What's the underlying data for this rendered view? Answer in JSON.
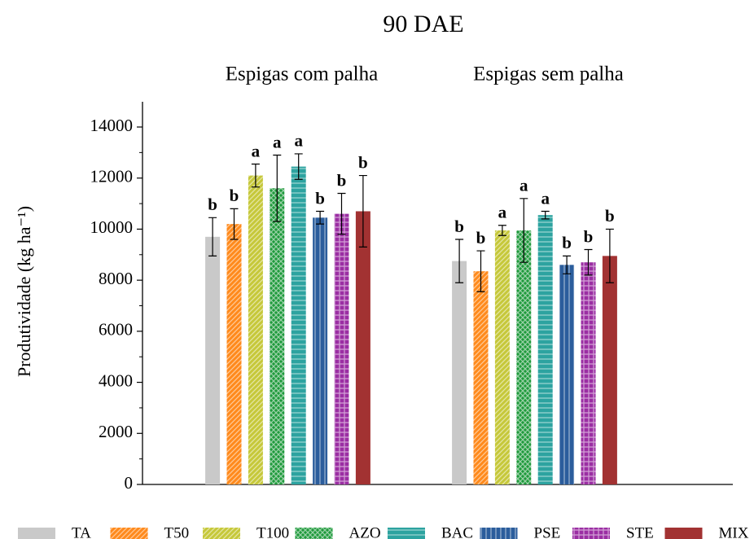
{
  "chart_data": {
    "type": "bar",
    "title": "90 DAE",
    "y_label": "Produtividade (kg ha⁻¹)",
    "categories": [
      "Espigas com palha",
      "Espigas sem palha"
    ],
    "ylim": [
      0,
      14000
    ],
    "yticks": [
      0,
      2000,
      4000,
      6000,
      8000,
      10000,
      12000,
      14000
    ],
    "yminorticks": [
      1000,
      3000,
      5000,
      7000,
      9000,
      11000,
      13000
    ],
    "series": [
      {
        "name": "TA",
        "color": "#c9c9c9",
        "pattern": "none",
        "values": [
          9700,
          8750
        ],
        "errors": [
          750,
          850
        ],
        "labels": [
          "b",
          "b"
        ]
      },
      {
        "name": "T50",
        "color": "#ff8a1c",
        "pattern": "diagonal",
        "values": [
          10200,
          8350
        ],
        "errors": [
          600,
          800
        ],
        "labels": [
          "b",
          "b"
        ]
      },
      {
        "name": "T100",
        "color": "#c6c83a",
        "pattern": "diagonal",
        "values": [
          12100,
          9950
        ],
        "errors": [
          450,
          200
        ],
        "labels": [
          "a",
          "a"
        ]
      },
      {
        "name": "AZO",
        "color": "#1f9a3c",
        "pattern": "cross",
        "values": [
          11600,
          9950
        ],
        "errors": [
          1300,
          1250
        ],
        "labels": [
          "a",
          "a"
        ]
      },
      {
        "name": "BAC",
        "color": "#2da3a0",
        "pattern": "horizontal",
        "values": [
          12450,
          10550
        ],
        "errors": [
          500,
          150
        ],
        "labels": [
          "a",
          "a"
        ]
      },
      {
        "name": "PSE",
        "color": "#2b5d9c",
        "pattern": "vertical",
        "values": [
          10450,
          8600
        ],
        "errors": [
          250,
          350
        ],
        "labels": [
          "b",
          "b"
        ]
      },
      {
        "name": "STE",
        "color": "#9b2ea3",
        "pattern": "grid",
        "values": [
          10600,
          8700
        ],
        "errors": [
          800,
          500
        ],
        "labels": [
          "b",
          "b"
        ]
      },
      {
        "name": "MIX",
        "color": "#a23232",
        "pattern": "none",
        "values": [
          10700,
          8950
        ],
        "errors": [
          1400,
          1050
        ],
        "labels": [
          "b",
          "b"
        ]
      }
    ]
  }
}
